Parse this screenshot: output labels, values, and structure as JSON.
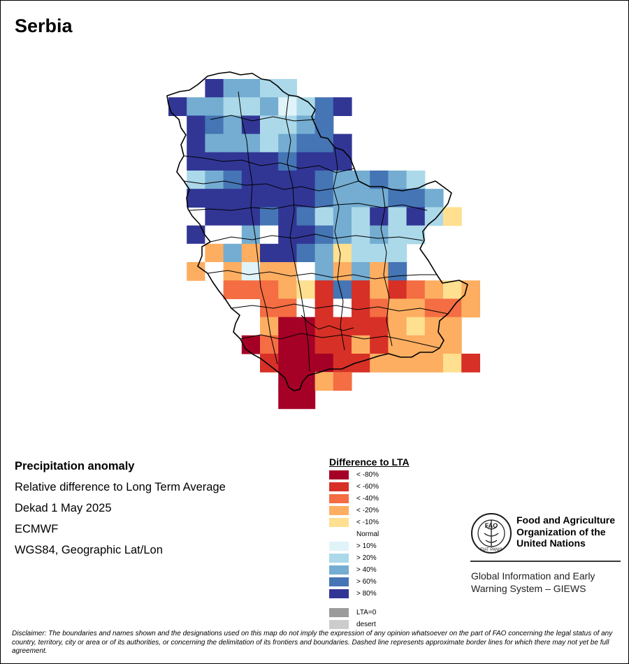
{
  "title": "Serbia",
  "meta": {
    "heading": "Precipitation anomaly",
    "line1": "Relative difference to Long Term Average",
    "line2": "Dekad 1 May 2025",
    "line3": "ECMWF",
    "line4": "WGS84, Geographic Lat/Lon"
  },
  "legend": {
    "title": "Difference to LTA",
    "items": [
      {
        "key": "r80",
        "label": "< -80%",
        "color": "#a50026"
      },
      {
        "key": "r60",
        "label": "< -60%",
        "color": "#d73027"
      },
      {
        "key": "r40",
        "label": "< -40%",
        "color": "#f46d43"
      },
      {
        "key": "r20",
        "label": "< -20%",
        "color": "#fdae61"
      },
      {
        "key": "r10",
        "label": "< -10%",
        "color": "#fee090"
      },
      {
        "key": "n",
        "label": "Normal",
        "color": "#ffffff"
      },
      {
        "key": "b10",
        "label": "> 10%",
        "color": "#e0f3f8"
      },
      {
        "key": "b20",
        "label": "> 20%",
        "color": "#abd9e9"
      },
      {
        "key": "b40",
        "label": "> 40%",
        "color": "#74add1"
      },
      {
        "key": "b60",
        "label": "> 60%",
        "color": "#4575b4"
      },
      {
        "key": "b80",
        "label": "> 80%",
        "color": "#313695"
      }
    ],
    "extra": [
      {
        "key": "lta0",
        "label": "LTA=0",
        "color": "#9b9b9b"
      },
      {
        "key": "desert",
        "label": "desert",
        "color": "#cccccc"
      }
    ]
  },
  "org": {
    "logo_text": "FAO",
    "logo_ring": "FIAT PANIS",
    "name": "Food and Agriculture Organization of the United Nations",
    "system": "Global Information and Early Warning System – GIEWS"
  },
  "disclaimer": "Disclaimer: The boundaries and names shown and the designations used on this map do not imply the expression of any opinion whatsoever on the part of FAO concerning the legal status of any country, territory, city or area or of its authorities, or concerning the delimitation of its frontiers and boundaries. Dashed line represents approximate border lines for which there may not yet be full agreement.",
  "grid": {
    "x0": 240,
    "y0": 112,
    "cell": 26.2,
    "rows": [
      {
        "c": 2,
        "v": [
          "b80",
          "b40",
          "b40",
          "b20",
          "b20"
        ]
      },
      {
        "c": 0,
        "v": [
          "b80",
          "b40",
          "b40",
          "b20",
          "b20",
          "b40",
          "b10",
          "b20",
          "b60",
          "b80"
        ]
      },
      {
        "c": 1,
        "v": [
          "b80",
          "b60",
          "b40",
          "b80",
          "b20",
          "b20",
          "b40",
          "b60"
        ]
      },
      {
        "c": 1,
        "v": [
          "b80",
          "b40",
          "b40",
          "b40",
          "b20",
          "b40",
          "b60",
          "b60",
          "b80"
        ]
      },
      {
        "c": 1,
        "v": [
          "b80",
          "b80",
          "b80",
          "b80",
          "b80",
          "b60",
          "b80",
          "b80",
          "b80"
        ]
      },
      {
        "c": 1,
        "v": [
          "b20",
          "b40",
          "b60",
          "b80",
          "b80",
          "b80",
          "b80",
          "b60",
          "b40",
          "b40",
          "b60",
          "b40",
          "b20"
        ]
      },
      {
        "c": 1,
        "v": [
          "b80",
          "b80",
          "b80",
          "b80",
          "b80",
          "b80",
          "b80",
          "b60",
          "b40",
          "b40",
          "b40",
          "b60",
          "b60",
          "b40"
        ]
      },
      {
        "c": 2,
        "v": [
          "b80",
          "b80",
          "b80",
          "b60",
          "b80",
          "b60",
          "b20",
          "b40",
          "b20",
          "b80",
          "b20",
          "b80",
          "b20",
          "r10"
        ]
      },
      {
        "c": 1,
        "v": [
          "b80",
          "n",
          "n",
          "b40",
          "n",
          "b80",
          "b80",
          "b60",
          "b40",
          "b20",
          "b40",
          "b20",
          "b20"
        ]
      },
      {
        "c": 1,
        "v": [
          "n",
          "r20",
          "b40",
          "r20",
          "b80",
          "b80",
          "b60",
          "b40",
          "r10",
          "b20",
          "b20",
          "b20"
        ]
      },
      {
        "c": 1,
        "v": [
          "r20",
          "n",
          "r20",
          "b10",
          "r20",
          "r20",
          "n",
          "b40",
          "r20",
          "b40",
          "r20",
          "b60"
        ]
      },
      {
        "c": 3,
        "v": [
          "r40",
          "r40",
          "r40",
          "r20",
          "r10",
          "r60",
          "b60",
          "r60",
          "r20",
          "r60",
          "r40",
          "r20",
          "r10",
          "r20"
        ]
      },
      {
        "c": 5,
        "v": [
          "r40",
          "r40",
          "n",
          "r60",
          "n",
          "r60",
          "r40",
          "r20",
          "r20",
          "r40",
          "r40",
          "r20"
        ]
      },
      {
        "c": 5,
        "v": [
          "r20",
          "r80",
          "r80",
          "r60",
          "r60",
          "r60",
          "r60",
          "r20",
          "r10",
          "r20",
          "r20"
        ]
      },
      {
        "c": 4,
        "v": [
          "r80",
          "r40",
          "r80",
          "r80",
          "r60",
          "r60",
          "r20",
          "r60",
          "r20",
          "r20",
          "r20",
          "r20"
        ]
      },
      {
        "c": 5,
        "v": [
          "r60",
          "r80",
          "r80",
          "r80",
          "r60",
          "r60",
          "r20",
          "r20",
          "r20",
          "r20",
          "r10",
          "r60"
        ]
      },
      {
        "c": 6,
        "v": [
          "r80",
          "r80",
          "r20",
          "r40"
        ]
      },
      {
        "c": 6,
        "v": [
          "r80",
          "r80"
        ]
      }
    ]
  }
}
